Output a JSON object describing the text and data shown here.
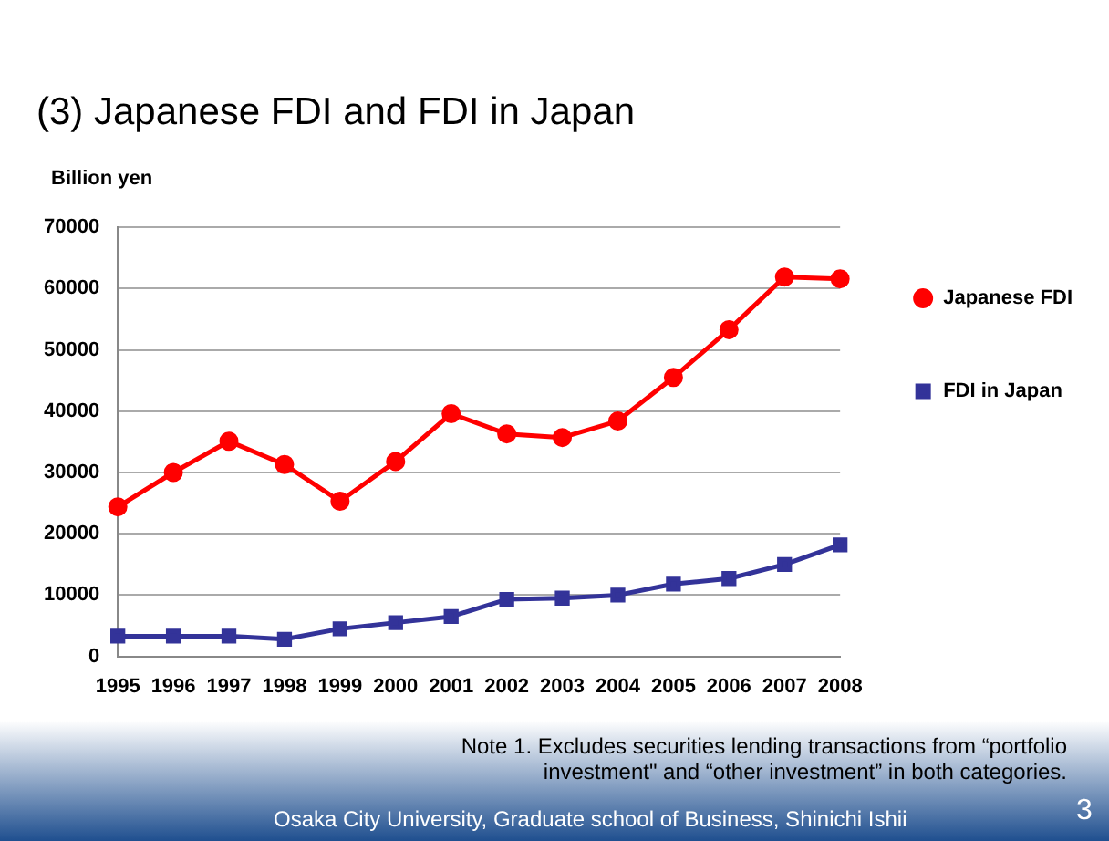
{
  "chart_data": {
    "type": "line",
    "title": "(3) Japanese FDI and FDI in Japan",
    "ylabel": "Billion yen",
    "categories": [
      "1995",
      "1996",
      "1997",
      "1998",
      "1999",
      "2000",
      "2001",
      "2002",
      "2003",
      "2004",
      "2005",
      "2006",
      "2007",
      "2008"
    ],
    "series": [
      {
        "name": "Japanese FDI",
        "color": "#ff0000",
        "marker": "circle",
        "values": [
          24400,
          30000,
          35100,
          31300,
          25300,
          31800,
          39600,
          36300,
          35700,
          38400,
          45500,
          53300,
          61900,
          61600
        ]
      },
      {
        "name": "FDI in Japan",
        "color": "#333399",
        "marker": "square",
        "values": [
          3300,
          3300,
          3300,
          2800,
          4500,
          5500,
          6500,
          9300,
          9500,
          10000,
          11800,
          12700,
          15000,
          18200
        ]
      }
    ],
    "ylim": [
      0,
      70000
    ],
    "yticks": [
      0,
      10000,
      20000,
      30000,
      40000,
      50000,
      60000,
      70000
    ],
    "grid": "y",
    "legend": "right",
    "line_style": "solid",
    "annotations": [
      "Note 1. Excludes securities lending transactions from “portfolio investment\" and “other investment”  in both categories.",
      "Osaka City University, Graduate school of Business, Shinichi Ishii",
      "3"
    ]
  }
}
